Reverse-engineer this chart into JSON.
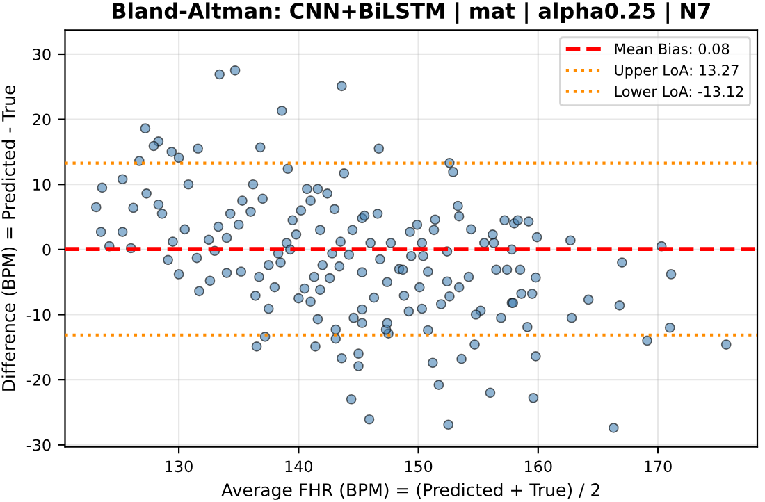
{
  "chart_data": {
    "type": "scatter",
    "title": "Bland-Altman: CNN+BiLSTM | mat | alpha0.25 | N7",
    "xlabel": "Average FHR (BPM) = (Predicted + True) / 2",
    "ylabel": "Difference (BPM) = Predicted - True",
    "xlim": [
      120.5,
      178.3
    ],
    "ylim": [
      -30.3,
      33.7
    ],
    "xticks": [
      130,
      140,
      150,
      160,
      170
    ],
    "yticks": [
      -30,
      -20,
      -10,
      0,
      10,
      20,
      30
    ],
    "grid": true,
    "legend": "top right",
    "marker": "circle",
    "series": [
      {
        "color": "#4682b4",
        "x": [
          123.1,
          123.5,
          123.6,
          124.2,
          125.3,
          127.2,
          128.3,
          127.9,
          129.4,
          130.0,
          126.7,
          133.4,
          134.7,
          138.6,
          136.8,
          131.6,
          131.7,
          136.5,
          137.2,
          130.0,
          129.1,
          126.0,
          125.3,
          126.2,
          127.3,
          128.3,
          128.6,
          129.5,
          130.5,
          130.8,
          132.6,
          134.0,
          135.2,
          137.5,
          136.4,
          138.0,
          131.5,
          132.5,
          133.3,
          134.3,
          135.3,
          136.2,
          133.0,
          134.0,
          135.0,
          136.0,
          137.0,
          136.7,
          137.5,
          138.3,
          139.0,
          139.8,
          140.5,
          141.3,
          142.0,
          142.8,
          143.5,
          141.0,
          141.8,
          142.6,
          143.4,
          144.2,
          139.5,
          140.2,
          141.0,
          141.8,
          138.5,
          139.3,
          140.0,
          144.5,
          145.3,
          146.0,
          146.8,
          145.3,
          143.6,
          146.7,
          143.8,
          139.1,
          152.6,
          152.9,
          153.3,
          153.4,
          151.4,
          149.9,
          146.6,
          145.5,
          143.0,
          142.4,
          141.6,
          140.7,
          141.4,
          143.6,
          145.0,
          145.0,
          144.4,
          145.9,
          151.2,
          151.7,
          152.5,
          153.6,
          154.7,
          156.0,
          150.8,
          147.5,
          147.3,
          143.1,
          143.1,
          141.6,
          145.3,
          147.4,
          149.2,
          150.3,
          155.2,
          154.8,
          156.9,
          157.8,
          156.5,
          157.4,
          155.5,
          156.3,
          156.2,
          157.2,
          157.8,
          154.4,
          151.9,
          152.6,
          153.4,
          154.2,
          147.4,
          148.4,
          149.4,
          150.3,
          151.3,
          150.1,
          148.8,
          150.8,
          144.6,
          145.3,
          146.3,
          147.7,
          149.3,
          150.4,
          152.4,
          152.4,
          148.7,
          158.0,
          158.3,
          159.2,
          159.9,
          162.7,
          170.3,
          167.0,
          171.1,
          158.5,
          159.8,
          158.6,
          159.5,
          157.9,
          164.2,
          166.8,
          162.8,
          159.1,
          171.0,
          169.1,
          175.7,
          159.8,
          159.6,
          166.3
        ],
        "values": [
          6.5,
          2.7,
          9.5,
          0.5,
          10.8,
          18.6,
          16.6,
          15.9,
          15.0,
          14.1,
          13.6,
          26.9,
          27.5,
          21.3,
          15.7,
          15.5,
          -6.4,
          -14.9,
          -13.4,
          -3.8,
          -1.6,
          0.2,
          2.7,
          6.4,
          8.6,
          6.9,
          5.5,
          1.2,
          3.1,
          10.0,
          -4.8,
          -3.6,
          -3.4,
          -9.1,
          -7.1,
          -5.8,
          -1.3,
          1.5,
          3.5,
          5.5,
          7.5,
          10.0,
          -0.2,
          1.8,
          3.8,
          5.8,
          7.8,
          -4.2,
          -2.4,
          -0.6,
          1.0,
          2.3,
          -6.0,
          -4.2,
          -2.4,
          -0.6,
          1.2,
          -8.0,
          -6.2,
          -4.4,
          -2.6,
          -0.8,
          4.5,
          6.0,
          7.5,
          3.0,
          -2.0,
          0.0,
          -7.5,
          3.0,
          4.8,
          1.0,
          -1.5,
          -3.5,
          25.1,
          15.5,
          11.7,
          12.4,
          13.3,
          11.9,
          6.7,
          5.1,
          4.6,
          3.8,
          5.5,
          5.2,
          6.2,
          8.6,
          9.3,
          9.3,
          -14.9,
          -16.7,
          -16.0,
          -17.9,
          -23.0,
          -26.1,
          -17.4,
          -20.8,
          -26.9,
          -16.8,
          -14.6,
          -22.0,
          -12.4,
          -12.9,
          -12.3,
          -13.7,
          -12.3,
          -10.7,
          -11.3,
          -11.3,
          -9.5,
          -9.1,
          -9.4,
          -10.0,
          -10.5,
          -8.2,
          -3.1,
          -3.1,
          1.0,
          1.0,
          2.3,
          4.5,
          0.0,
          3.1,
          -8.4,
          -7.2,
          -5.8,
          -4.2,
          -5.0,
          -3.0,
          -1.0,
          1.0,
          3.0,
          -5.8,
          -7.1,
          -3.4,
          -10.5,
          -9.2,
          -7.4,
          1.0,
          2.7,
          -1.0,
          -0.3,
          -4.9,
          -3.1,
          4.0,
          4.5,
          4.3,
          1.9,
          1.4,
          0.5,
          -2.0,
          -3.8,
          -3.1,
          -4.3,
          -6.8,
          -6.8,
          -8.2,
          -7.7,
          -8.6,
          -10.5,
          -11.9,
          -12.0,
          -14.0,
          -14.6,
          -16.4,
          -22.8,
          -27.4
        ]
      }
    ],
    "ref_lines": [
      {
        "axis": "y",
        "value": 0.08,
        "label": "Mean Bias: 0.08",
        "color": "#ff0000",
        "line_style": "dashed"
      },
      {
        "axis": "y",
        "value": 13.27,
        "label": "Upper LoA: 13.27",
        "color": "#ff8c00",
        "line_style": "dotted"
      },
      {
        "axis": "y",
        "value": -13.12,
        "label": "Lower LoA: -13.12",
        "color": "#ff8c00",
        "line_style": "dotted"
      }
    ]
  }
}
